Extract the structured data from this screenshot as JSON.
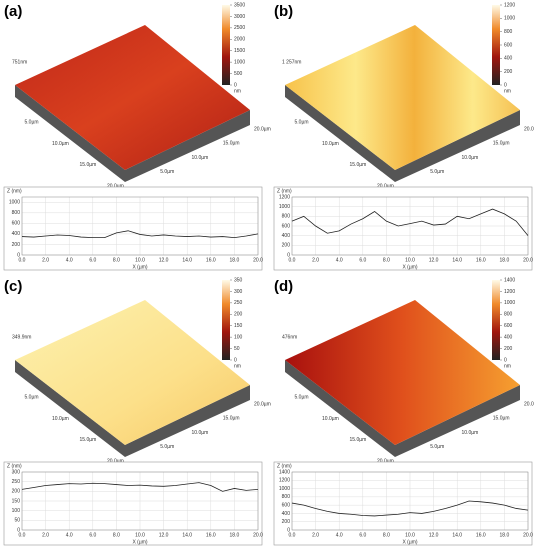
{
  "panels": [
    {
      "label": "(a)",
      "height_label": "751nm",
      "axis_labels": [
        "5.0µm",
        "10.0µm",
        "15.0µm",
        "20.0µm",
        "5.0µm",
        "10.0µm",
        "15.0µm",
        "20.0µm"
      ],
      "colorbar": {
        "ticks": [
          3500,
          3000,
          2500,
          2000,
          1500,
          1000,
          500,
          0
        ],
        "unit": "nm"
      },
      "profile": {
        "ylabel": "Z (nm)",
        "xlabel": "X (µm)",
        "xlim": [
          0,
          20
        ],
        "ylim": [
          0,
          1100
        ],
        "xticks": [
          {
            "value": 0,
            "label": "0.0"
          },
          {
            "value": 2,
            "label": "2.0"
          },
          {
            "value": 4,
            "label": "4.0"
          },
          {
            "value": 6,
            "label": "6.0"
          },
          {
            "value": 8,
            "label": "8.0"
          },
          {
            "value": 10,
            "label": "10.0"
          },
          {
            "value": 12,
            "label": "12.0"
          },
          {
            "value": 14,
            "label": "14.0"
          },
          {
            "value": 16,
            "label": "16.0"
          },
          {
            "value": 18,
            "label": "18.0"
          },
          {
            "value": 20,
            "label": "20.0"
          }
        ],
        "yticks": [
          0,
          200,
          400,
          600,
          800,
          1000
        ],
        "x": [
          0,
          1,
          2,
          3,
          4,
          5,
          6,
          7,
          8,
          9,
          10,
          11,
          12,
          13,
          14,
          15,
          16,
          17,
          18,
          19,
          20
        ],
        "values": [
          350,
          340,
          360,
          380,
          370,
          340,
          330,
          330,
          420,
          460,
          390,
          360,
          380,
          360,
          350,
          360,
          340,
          350,
          330,
          360,
          400
        ]
      }
    },
    {
      "label": "(b)",
      "height_label": "1 257nm",
      "axis_labels": [
        "5.0µm",
        "10.0µm",
        "15.0µm",
        "20.0µm",
        "5.0µm",
        "10.0µm",
        "15.0µm",
        "20.0µm"
      ],
      "colorbar": {
        "ticks": [
          1200,
          1000,
          800,
          600,
          400,
          200,
          0
        ],
        "unit": "nm"
      },
      "profile": {
        "ylabel": "Z (nm)",
        "xlabel": "X (µm)",
        "xlim": [
          0,
          20
        ],
        "ylim": [
          0,
          1200
        ],
        "xticks": [
          {
            "value": 0,
            "label": "0.0"
          },
          {
            "value": 2,
            "label": "2.0"
          },
          {
            "value": 4,
            "label": "4.0"
          },
          {
            "value": 6,
            "label": "6.0"
          },
          {
            "value": 8,
            "label": "8.0"
          },
          {
            "value": 10,
            "label": "10.0"
          },
          {
            "value": 12,
            "label": "12.0"
          },
          {
            "value": 14,
            "label": "14.0"
          },
          {
            "value": 16,
            "label": "16.0"
          },
          {
            "value": 18,
            "label": "18.0"
          },
          {
            "value": 20,
            "label": "20.0"
          }
        ],
        "yticks": [
          0,
          200,
          400,
          600,
          800,
          1000,
          1200
        ],
        "x": [
          0,
          1,
          2,
          3,
          4,
          5,
          6,
          7,
          8,
          9,
          10,
          11,
          12,
          13,
          14,
          15,
          16,
          17,
          18,
          19,
          20
        ],
        "values": [
          700,
          800,
          600,
          450,
          500,
          640,
          750,
          900,
          700,
          600,
          650,
          700,
          620,
          640,
          800,
          750,
          850,
          950,
          850,
          700,
          400
        ]
      }
    },
    {
      "label": "(c)",
      "height_label": "349.9nm",
      "axis_labels": [
        "5.0µm",
        "10.0µm",
        "15.0µm",
        "20.0µm",
        "5.0µm",
        "10.0µm",
        "15.0µm",
        "20.0µm"
      ],
      "colorbar": {
        "ticks": [
          350,
          300,
          250,
          200,
          150,
          100,
          50,
          0
        ],
        "unit": "nm"
      },
      "profile": {
        "ylabel": "Z (nm)",
        "xlabel": "X (µm)",
        "xlim": [
          0,
          20
        ],
        "ylim": [
          0,
          300
        ],
        "xticks": [
          {
            "value": 0,
            "label": "0.0"
          },
          {
            "value": 2,
            "label": "2.0"
          },
          {
            "value": 4,
            "label": "4.0"
          },
          {
            "value": 6,
            "label": "6.0"
          },
          {
            "value": 8,
            "label": "8.0"
          },
          {
            "value": 10,
            "label": "10.0"
          },
          {
            "value": 12,
            "label": "12.0"
          },
          {
            "value": 14,
            "label": "14.0"
          },
          {
            "value": 16,
            "label": "16.0"
          },
          {
            "value": 18,
            "label": "18.0"
          },
          {
            "value": 20,
            "label": "20.0"
          }
        ],
        "yticks": [
          0,
          50,
          100,
          150,
          200,
          250,
          300
        ],
        "x": [
          0,
          1,
          2,
          3,
          4,
          5,
          6,
          7,
          8,
          9,
          10,
          11,
          12,
          13,
          14,
          15,
          16,
          17,
          18,
          19,
          20
        ],
        "values": [
          210,
          220,
          230,
          235,
          240,
          238,
          242,
          240,
          235,
          230,
          232,
          228,
          226,
          230,
          238,
          245,
          230,
          200,
          215,
          205,
          210
        ]
      }
    },
    {
      "label": "(d)",
      "height_label": "476nm",
      "axis_labels": [
        "5.0µm",
        "10.0µm",
        "15.0µm",
        "20.0µm",
        "5.0µm",
        "10.0µm",
        "15.0µm",
        "20.0µm"
      ],
      "colorbar": {
        "ticks": [
          1400,
          1200,
          1000,
          800,
          600,
          400,
          200,
          0
        ],
        "unit": "nm"
      },
      "profile": {
        "ylabel": "Z (nm)",
        "xlabel": "X (µm)",
        "xlim": [
          0,
          20
        ],
        "ylim": [
          0,
          1400
        ],
        "xticks": [
          {
            "value": 0,
            "label": "0.0"
          },
          {
            "value": 2,
            "label": "2.0"
          },
          {
            "value": 4,
            "label": "4.0"
          },
          {
            "value": 6,
            "label": "6.0"
          },
          {
            "value": 8,
            "label": "8.0"
          },
          {
            "value": 10,
            "label": "10.0"
          },
          {
            "value": 12,
            "label": "12.0"
          },
          {
            "value": 14,
            "label": "14.0"
          },
          {
            "value": 16,
            "label": "16.0"
          },
          {
            "value": 18,
            "label": "18.0"
          },
          {
            "value": 20,
            "label": "20.0"
          }
        ],
        "yticks": [
          0,
          200,
          400,
          600,
          800,
          1000,
          1200,
          1400
        ],
        "x": [
          0,
          1,
          2,
          3,
          4,
          5,
          6,
          7,
          8,
          9,
          10,
          11,
          12,
          13,
          14,
          15,
          16,
          17,
          18,
          19,
          20
        ],
        "values": [
          650,
          600,
          520,
          450,
          400,
          380,
          350,
          340,
          360,
          380,
          420,
          400,
          450,
          520,
          600,
          700,
          680,
          650,
          600,
          520,
          480
        ]
      }
    }
  ]
}
